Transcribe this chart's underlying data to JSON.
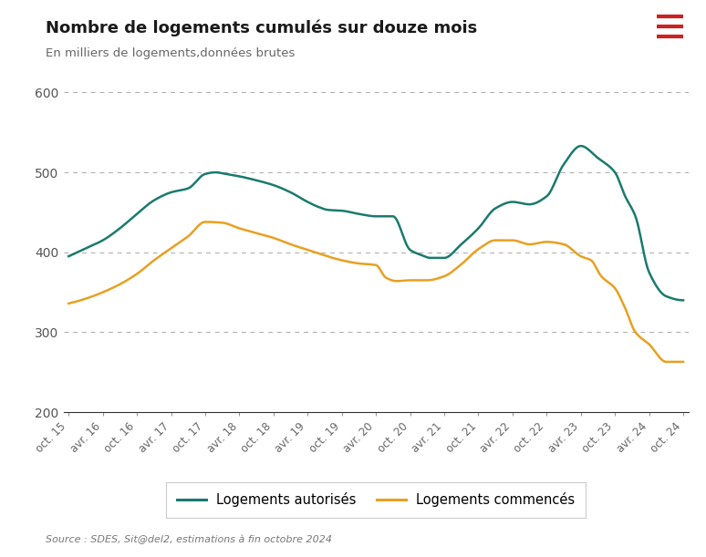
{
  "title": "Nombre de logements cumulés sur douze mois",
  "subtitle": "En milliers de logements,données brutes",
  "source": "Source : SDES, Sit@del2, estimations à fin octobre 2024",
  "teal_color": "#1a7a6e",
  "orange_color": "#e8a020",
  "background_color": "#ffffff",
  "legend1": "Logements autorisés",
  "legend2": "Logements commencés",
  "ylim": [
    200,
    625
  ],
  "yticks": [
    200,
    300,
    400,
    500,
    600
  ],
  "x_labels": [
    "oct. 15",
    "avr. 16",
    "oct. 16",
    "avr. 17",
    "oct. 17",
    "avr. 18",
    "oct. 18",
    "avr. 19",
    "oct. 19",
    "avr. 20",
    "oct. 20",
    "avr. 21",
    "oct. 21",
    "avr. 22",
    "oct. 22",
    "avr. 23",
    "oct. 23",
    "avr. 24",
    "oct. 24"
  ],
  "auth_x": [
    0,
    0.5,
    1,
    1.5,
    2,
    2.5,
    3,
    3.5,
    4,
    4.3,
    4.6,
    5,
    5.5,
    6,
    6.5,
    7,
    7.3,
    7.6,
    8,
    8.5,
    9,
    9.5,
    10,
    10.3,
    10.6,
    11,
    11.5,
    12,
    12.5,
    13,
    13.5,
    14,
    14.5,
    15,
    15.5,
    16,
    16.3,
    16.6,
    17,
    17.5,
    18
  ],
  "auth_y": [
    395,
    405,
    415,
    430,
    448,
    465,
    475,
    480,
    498,
    500,
    498,
    495,
    490,
    484,
    475,
    463,
    457,
    453,
    452,
    448,
    445,
    445,
    403,
    397,
    393,
    393,
    410,
    430,
    455,
    463,
    460,
    470,
    510,
    533,
    518,
    500,
    470,
    445,
    375,
    345,
    340
  ],
  "comm_x": [
    0,
    0.5,
    1,
    1.5,
    2,
    2.5,
    3,
    3.5,
    4,
    4.5,
    5,
    5.5,
    6,
    6.5,
    7,
    7.5,
    8,
    8.5,
    9,
    9.3,
    9.6,
    10,
    10.5,
    11,
    11.5,
    12,
    12.5,
    13,
    13.5,
    14,
    14.5,
    15,
    15.3,
    15.6,
    16,
    16.3,
    16.6,
    17,
    17.5,
    18
  ],
  "comm_y": [
    336,
    342,
    350,
    360,
    373,
    390,
    405,
    420,
    438,
    437,
    430,
    424,
    418,
    410,
    403,
    396,
    390,
    386,
    384,
    368,
    364,
    365,
    365,
    370,
    385,
    404,
    415,
    415,
    410,
    413,
    410,
    395,
    390,
    370,
    355,
    330,
    300,
    285,
    263,
    263
  ]
}
